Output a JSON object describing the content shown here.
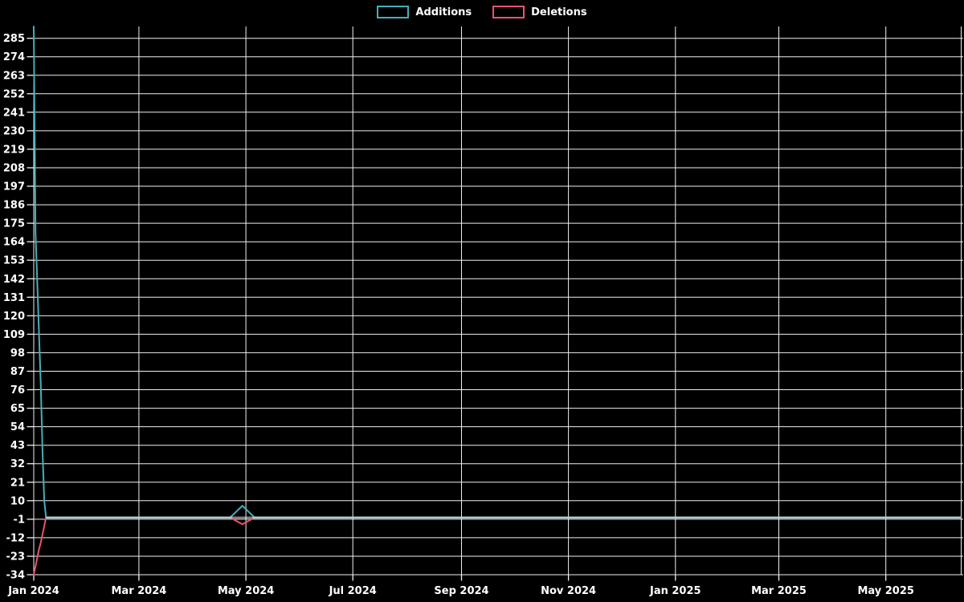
{
  "chart_data": {
    "type": "line",
    "background_color": "#000000",
    "grid_color": "#f0f0f0",
    "text_color": "#ffffff",
    "legend_position": "top-center",
    "x_axis": {
      "range": [
        "2024-01-01",
        "2025-06-13"
      ],
      "ticks": [
        {
          "date": "2024-01-01",
          "label": "Jan 2024"
        },
        {
          "date": "2024-03-01",
          "label": "Mar 2024"
        },
        {
          "date": "2024-05-01",
          "label": "May 2024"
        },
        {
          "date": "2024-07-01",
          "label": "Jul 2024"
        },
        {
          "date": "2024-09-01",
          "label": "Sep 2024"
        },
        {
          "date": "2024-11-01",
          "label": "Nov 2024"
        },
        {
          "date": "2025-01-01",
          "label": "Jan 2025"
        },
        {
          "date": "2025-03-01",
          "label": "Mar 2025"
        },
        {
          "date": "2025-05-01",
          "label": "May 2025"
        }
      ]
    },
    "y_axis": {
      "min": -34,
      "max": 292,
      "tick_step": 11,
      "tick_values": [
        285,
        274,
        263,
        252,
        241,
        230,
        219,
        208,
        197,
        186,
        175,
        164,
        153,
        142,
        131,
        120,
        109,
        98,
        87,
        76,
        65,
        54,
        43,
        32,
        21,
        10,
        -1,
        -12,
        -23,
        -34
      ]
    },
    "series": [
      {
        "name": "Deletions",
        "color": "#e8556e",
        "points": [
          {
            "date": "2024-01-01",
            "value": -34
          },
          {
            "date": "2024-01-02",
            "value": -29
          },
          {
            "date": "2024-01-03",
            "value": -24
          },
          {
            "date": "2024-01-04",
            "value": -19
          },
          {
            "date": "2024-01-05",
            "value": -15
          },
          {
            "date": "2024-01-06",
            "value": -10
          },
          {
            "date": "2024-01-07",
            "value": -5
          },
          {
            "date": "2024-01-08",
            "value": 0
          },
          {
            "date": "2024-04-22",
            "value": 0
          },
          {
            "date": "2024-04-29",
            "value": -4
          },
          {
            "date": "2024-05-06",
            "value": 0
          },
          {
            "date": "2025-06-13",
            "value": 0
          }
        ]
      },
      {
        "name": "Additions",
        "color": "#46afb9",
        "points": [
          {
            "date": "2024-01-01",
            "value": 292
          },
          {
            "date": "2024-01-02",
            "value": 170
          },
          {
            "date": "2024-01-03",
            "value": 140
          },
          {
            "date": "2024-01-04",
            "value": 110
          },
          {
            "date": "2024-01-05",
            "value": 80
          },
          {
            "date": "2024-01-06",
            "value": 40
          },
          {
            "date": "2024-01-07",
            "value": 10
          },
          {
            "date": "2024-01-08",
            "value": 0
          },
          {
            "date": "2024-04-22",
            "value": 0
          },
          {
            "date": "2024-04-29",
            "value": 7
          },
          {
            "date": "2024-05-06",
            "value": 0
          },
          {
            "date": "2025-06-13",
            "value": 0
          }
        ]
      }
    ]
  }
}
